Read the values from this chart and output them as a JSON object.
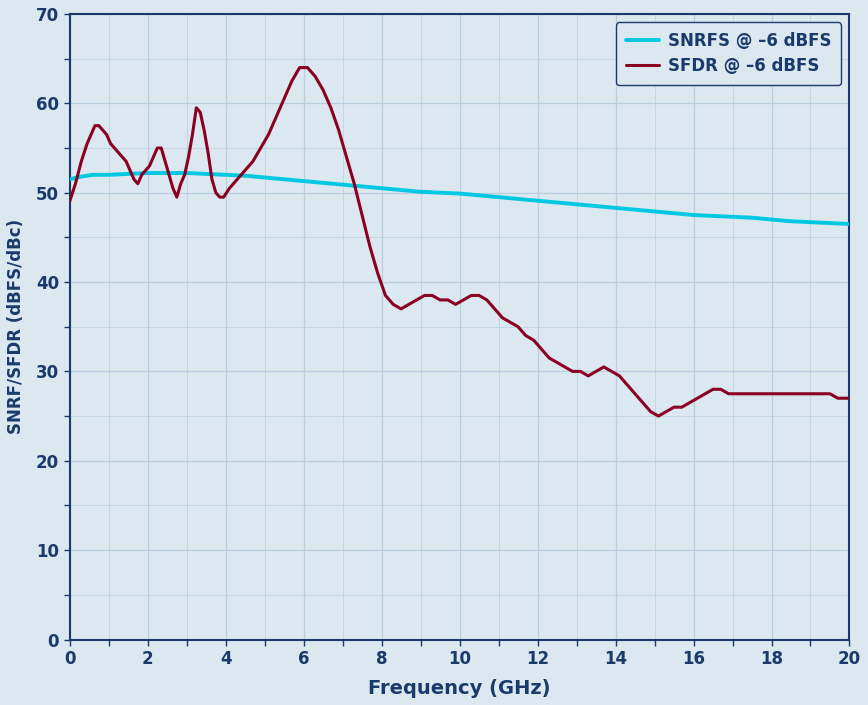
{
  "title": "",
  "xlabel": "Frequency (GHz)",
  "ylabel": "SNRF/SFDR (dBFS/dBc)",
  "xlim": [
    0,
    20
  ],
  "ylim": [
    0,
    70
  ],
  "xticks": [
    0,
    2,
    4,
    6,
    8,
    10,
    12,
    14,
    16,
    18,
    20
  ],
  "yticks": [
    0,
    10,
    20,
    30,
    40,
    50,
    60,
    70
  ],
  "bg_color": "#dce8f0",
  "plot_bg_color": "#dce8f0",
  "grid_color": "#b8cfe0",
  "spine_color": "#1a3a6b",
  "label_color": "#1a3a6b",
  "snrfs_color": "#00c8e0",
  "sfdr_color": "#8b0020",
  "legend_snrfs": "SNRFS @ –6 dBFS",
  "legend_sfdr": "SFDR @ –6 dBFS",
  "snrfs_x": [
    0.0,
    0.3,
    0.6,
    1.0,
    1.5,
    2.0,
    2.5,
    3.0,
    3.5,
    4.0,
    4.5,
    5.0,
    5.5,
    6.0,
    6.5,
    7.0,
    7.5,
    8.0,
    8.5,
    9.0,
    9.5,
    10.0,
    10.5,
    11.0,
    11.5,
    12.0,
    12.5,
    13.0,
    13.5,
    14.0,
    14.5,
    15.0,
    15.5,
    16.0,
    16.5,
    17.0,
    17.5,
    18.0,
    18.5,
    19.0,
    19.5,
    20.0
  ],
  "snrfs_y": [
    51.5,
    51.8,
    52.0,
    52.0,
    52.1,
    52.2,
    52.2,
    52.2,
    52.1,
    52.0,
    51.9,
    51.7,
    51.5,
    51.3,
    51.1,
    50.9,
    50.7,
    50.5,
    50.3,
    50.1,
    50.0,
    49.9,
    49.7,
    49.5,
    49.3,
    49.1,
    48.9,
    48.7,
    48.5,
    48.3,
    48.1,
    47.9,
    47.7,
    47.5,
    47.4,
    47.3,
    47.2,
    47.0,
    46.8,
    46.7,
    46.6,
    46.5
  ],
  "sfdr_x": [
    0.0,
    0.15,
    0.3,
    0.45,
    0.55,
    0.65,
    0.75,
    0.85,
    0.95,
    1.05,
    1.15,
    1.25,
    1.35,
    1.45,
    1.55,
    1.65,
    1.75,
    1.85,
    1.95,
    2.05,
    2.15,
    2.25,
    2.35,
    2.45,
    2.55,
    2.65,
    2.75,
    2.85,
    2.95,
    3.05,
    3.15,
    3.25,
    3.35,
    3.45,
    3.55,
    3.65,
    3.75,
    3.85,
    3.95,
    4.1,
    4.3,
    4.5,
    4.7,
    4.9,
    5.1,
    5.3,
    5.5,
    5.7,
    5.9,
    6.1,
    6.3,
    6.5,
    6.7,
    6.9,
    7.1,
    7.3,
    7.5,
    7.7,
    7.9,
    8.1,
    8.3,
    8.5,
    8.7,
    8.9,
    9.1,
    9.3,
    9.5,
    9.7,
    9.9,
    10.1,
    10.3,
    10.5,
    10.7,
    10.9,
    11.1,
    11.3,
    11.5,
    11.7,
    11.9,
    12.1,
    12.3,
    12.5,
    12.7,
    12.9,
    13.1,
    13.3,
    13.5,
    13.7,
    13.9,
    14.1,
    14.3,
    14.5,
    14.7,
    14.9,
    15.1,
    15.3,
    15.5,
    15.7,
    15.9,
    16.1,
    16.3,
    16.5,
    16.7,
    16.9,
    17.1,
    17.3,
    17.5,
    17.7,
    17.9,
    18.1,
    18.3,
    18.5,
    18.7,
    18.9,
    19.1,
    19.3,
    19.5,
    19.7,
    19.9,
    20.0
  ],
  "sfdr_y": [
    49.0,
    51.0,
    53.5,
    55.5,
    56.5,
    57.5,
    57.5,
    57.0,
    56.5,
    55.5,
    55.0,
    54.5,
    54.0,
    53.5,
    52.5,
    51.5,
    51.0,
    52.0,
    52.5,
    53.0,
    54.0,
    55.0,
    55.0,
    53.5,
    52.0,
    50.5,
    49.5,
    51.0,
    52.0,
    54.0,
    56.5,
    59.5,
    59.0,
    57.0,
    54.5,
    51.5,
    50.0,
    49.5,
    49.5,
    50.5,
    51.5,
    52.5,
    53.5,
    55.0,
    56.5,
    58.5,
    60.5,
    62.5,
    64.0,
    64.0,
    63.0,
    61.5,
    59.5,
    57.0,
    54.0,
    51.0,
    47.5,
    44.0,
    41.0,
    38.5,
    37.5,
    37.0,
    37.5,
    38.0,
    38.5,
    38.5,
    38.0,
    38.0,
    37.5,
    38.0,
    38.5,
    38.5,
    38.0,
    37.0,
    36.0,
    35.5,
    35.0,
    34.0,
    33.5,
    32.5,
    31.5,
    31.0,
    30.5,
    30.0,
    30.0,
    29.5,
    30.0,
    30.5,
    30.0,
    29.5,
    28.5,
    27.5,
    26.5,
    25.5,
    25.0,
    25.5,
    26.0,
    26.0,
    26.5,
    27.0,
    27.5,
    28.0,
    28.0,
    27.5,
    27.5,
    27.5,
    27.5,
    27.5,
    27.5,
    27.5,
    27.5,
    27.5,
    27.5,
    27.5,
    27.5,
    27.5,
    27.5,
    27.0,
    27.0,
    27.0
  ]
}
